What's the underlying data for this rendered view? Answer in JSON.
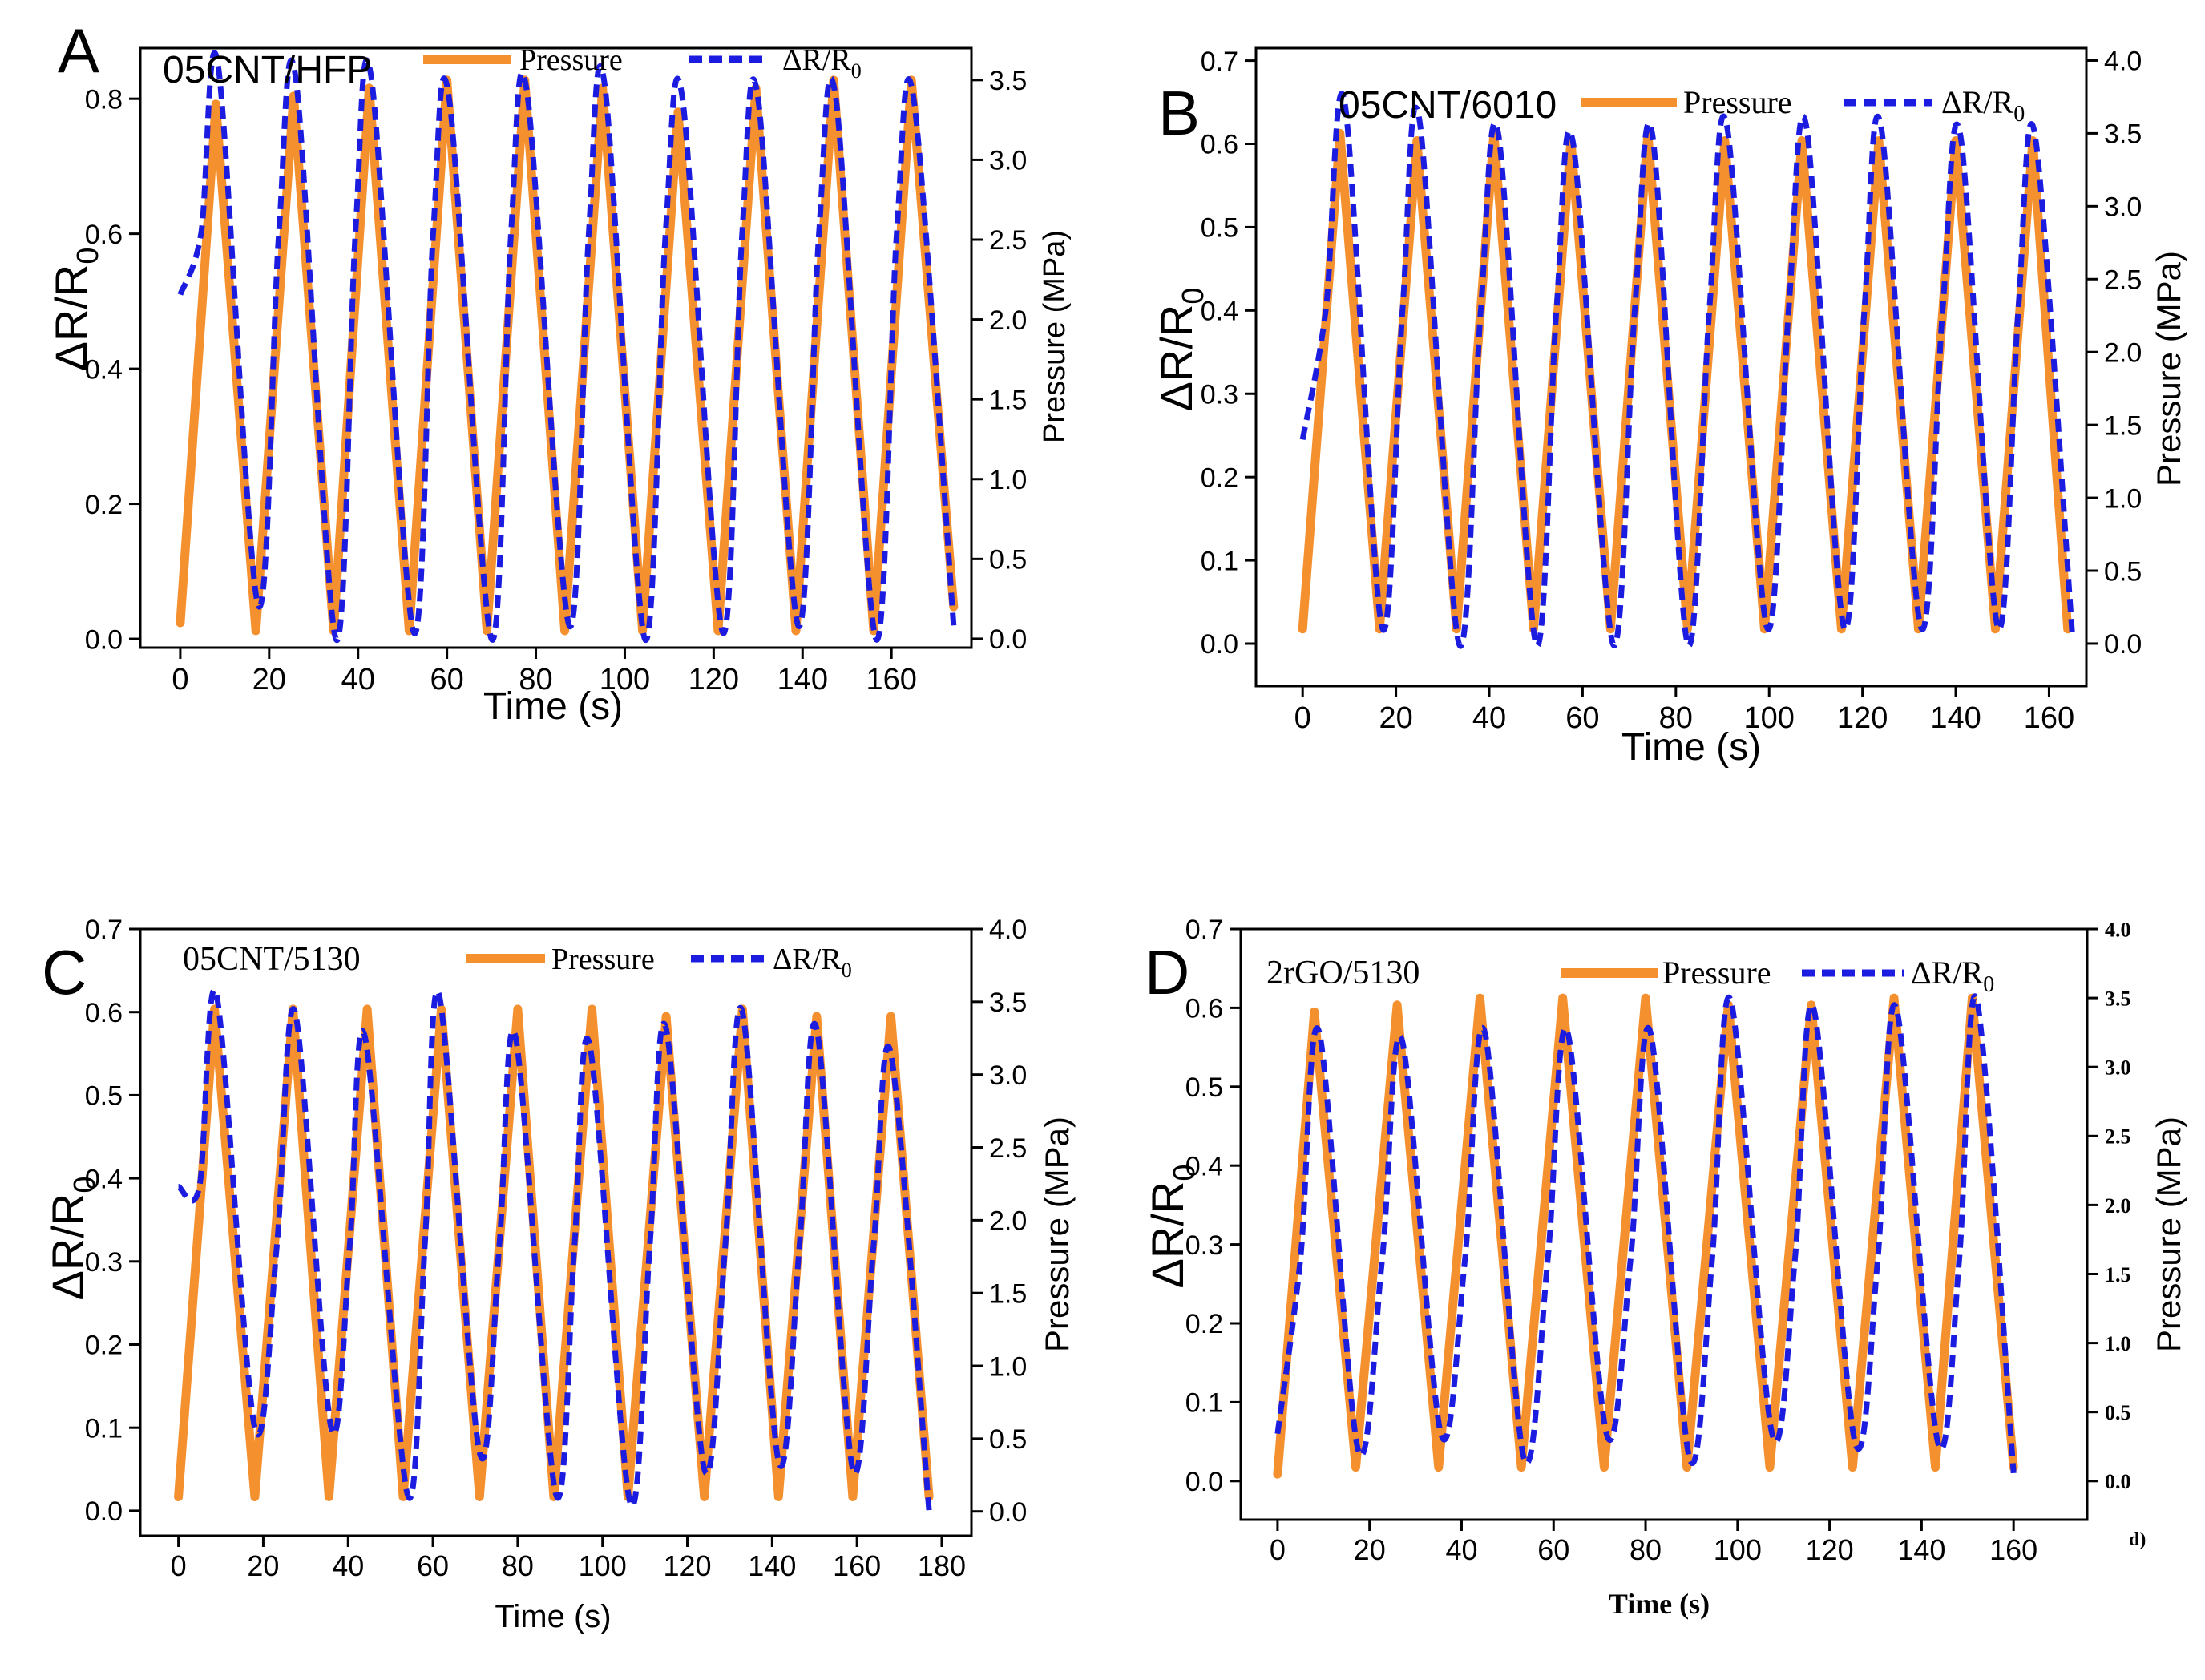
{
  "chart_data": [
    {
      "panel": "A",
      "type": "line",
      "sample_label": "05CNT/HFP",
      "xlabel": "Time (s)",
      "ylabel": "ΔR/R",
      "ylabel_sub": "0",
      "y2label": "Pressure (MPa)",
      "xlim": [
        -9,
        178
      ],
      "ylim": [
        -0.013,
        0.875
      ],
      "y2lim": [
        -0.0556,
        3.7
      ],
      "xticks": [
        0,
        20,
        40,
        60,
        80,
        100,
        120,
        140,
        160
      ],
      "xtick_labels": [
        "0",
        "20",
        "40",
        "60",
        "80",
        "100",
        "120",
        "140",
        "160"
      ],
      "yticks": [
        0,
        0.2,
        0.4,
        0.6,
        0.8
      ],
      "ytick_labels": [
        "0.0",
        "0.2",
        "0.4",
        "0.6",
        "0.8"
      ],
      "y2ticks": [
        0,
        0.5,
        1,
        1.5,
        2,
        2.5,
        3,
        3.5
      ],
      "y2tick_labels": [
        "0.0",
        "0.5",
        "1.0",
        "1.5",
        "2.0",
        "2.5",
        "3.0",
        "3.5"
      ],
      "legend": {
        "pressure": "Pressure",
        "resistance": "ΔR/R",
        "resistance_sub": "0",
        "placement": "top"
      },
      "series": [
        {
          "name": "Pressure",
          "axis": "right",
          "style": "solid",
          "color": "#F5902F",
          "start": [
            0,
            0.1
          ],
          "end": [
            174,
            0.2
          ],
          "peaks": [
            [
              8,
              3.35
            ],
            [
              25.5,
              3.4
            ],
            [
              42.5,
              3.45
            ],
            [
              60,
              3.5
            ],
            [
              77.5,
              3.5
            ],
            [
              95,
              3.45
            ],
            [
              112,
              3.3
            ],
            [
              129.5,
              3.45
            ],
            [
              147,
              3.5
            ],
            [
              164.5,
              3.5
            ]
          ],
          "troughs": [
            [
              17,
              0.05
            ],
            [
              34.5,
              0.05
            ],
            [
              51.5,
              0.05
            ],
            [
              69,
              0.05
            ],
            [
              86.5,
              0.05
            ],
            [
              104,
              0.05
            ],
            [
              121,
              0.05
            ],
            [
              138.5,
              0.05
            ],
            [
              156,
              0.05
            ]
          ]
        },
        {
          "name": "ΔR/R0",
          "axis": "left",
          "style": "dashed",
          "color": "#1C1CE0",
          "start": [
            0,
            0.51
          ],
          "end": [
            174,
            0.02
          ],
          "peaks": [
            [
              8.5,
              0.85
            ],
            [
              26,
              0.83
            ],
            [
              43,
              0.83
            ],
            [
              60.5,
              0.8
            ],
            [
              78,
              0.81
            ],
            [
              95.5,
              0.82
            ],
            [
              113,
              0.8
            ],
            [
              130,
              0.8
            ],
            [
              147.5,
              0.8
            ],
            [
              165,
              0.8
            ]
          ],
          "troughs": [
            [
              17.5,
              0.05
            ],
            [
              35,
              0.0
            ],
            [
              52.5,
              0.01
            ],
            [
              70,
              0.0
            ],
            [
              87.5,
              0.02
            ],
            [
              104.5,
              0.0
            ],
            [
              122,
              0.01
            ],
            [
              139,
              0.02
            ],
            [
              156.5,
              0.0
            ]
          ],
          "shoulder": 0.6
        }
      ]
    },
    {
      "panel": "B",
      "type": "line",
      "sample_label": "05CNT/6010",
      "xlabel": "Time (s)",
      "ylabel": "ΔR/R",
      "ylabel_sub": "0",
      "y2label": "Pressure (MPa)",
      "xlim": [
        -10,
        168
      ],
      "ylim": [
        -0.051,
        0.715
      ],
      "y2lim": [
        -0.2917,
        4.085
      ],
      "xticks": [
        0,
        20,
        40,
        60,
        80,
        100,
        120,
        140,
        160
      ],
      "xtick_labels": [
        "0",
        "20",
        "40",
        "60",
        "80",
        "100",
        "120",
        "140",
        "160"
      ],
      "yticks": [
        0,
        0.1,
        0.2,
        0.3,
        0.4,
        0.5,
        0.6,
        0.7
      ],
      "ytick_labels": [
        "0.0",
        "0.1",
        "0.2",
        "0.3",
        "0.4",
        "0.5",
        "0.6",
        "0.7"
      ],
      "y2ticks": [
        0,
        0.5,
        1,
        1.5,
        2,
        2.5,
        3,
        3.5,
        4
      ],
      "y2tick_labels": [
        "0.0",
        "0.5",
        "1.0",
        "1.5",
        "2.0",
        "2.5",
        "3.0",
        "3.5",
        "4.0"
      ],
      "legend": {
        "pressure": "Pressure",
        "resistance": "ΔR/R",
        "resistance_sub": "0",
        "placement": "top"
      },
      "series": [
        {
          "name": "Pressure",
          "axis": "right",
          "style": "solid",
          "color": "#F5902F",
          "start": [
            0,
            0.1
          ],
          "end": [
            164,
            0.1
          ],
          "peaks": [
            [
              8,
              3.5
            ],
            [
              24.5,
              3.45
            ],
            [
              41,
              3.5
            ],
            [
              57.5,
              3.45
            ],
            [
              74,
              3.5
            ],
            [
              90.5,
              3.45
            ],
            [
              107,
              3.45
            ],
            [
              123.5,
              3.45
            ],
            [
              140,
              3.45
            ],
            [
              156.5,
              3.45
            ]
          ],
          "troughs": [
            [
              16.5,
              0.1
            ],
            [
              33,
              0.1
            ],
            [
              49.5,
              0.1
            ],
            [
              66,
              0.1
            ],
            [
              82.5,
              0.1
            ],
            [
              99,
              0.1
            ],
            [
              115.5,
              0.1
            ],
            [
              132,
              0.1
            ],
            [
              148.5,
              0.1
            ]
          ]
        },
        {
          "name": "ΔR/R0",
          "axis": "left",
          "style": "dashed",
          "color": "#1C1CE0",
          "start": [
            0,
            0.245
          ],
          "end": [
            165,
            0.01
          ],
          "peaks": [
            [
              9,
              0.65
            ],
            [
              25,
              0.63
            ],
            [
              42,
              0.61
            ],
            [
              58,
              0.6
            ],
            [
              75,
              0.61
            ],
            [
              91,
              0.62
            ],
            [
              108,
              0.62
            ],
            [
              124,
              0.62
            ],
            [
              141,
              0.61
            ],
            [
              157,
              0.61
            ]
          ],
          "troughs": [
            [
              17,
              0.02
            ],
            [
              33.5,
              0.0
            ],
            [
              50,
              0.0
            ],
            [
              66.5,
              0.0
            ],
            [
              82.5,
              0.0
            ],
            [
              99.5,
              0.02
            ],
            [
              116,
              0.02
            ],
            [
              132.5,
              0.02
            ],
            [
              149,
              0.02
            ]
          ],
          "shoulder": 0.4
        }
      ]
    },
    {
      "panel": "C",
      "type": "line",
      "sample_label": "05CNT/5130",
      "xlabel": "Time (s)",
      "ylabel": "ΔR/R",
      "ylabel_sub": "0",
      "y2label": "Pressure (MPa)",
      "xlim": [
        -9,
        187
      ],
      "ylim": [
        -0.03,
        0.7
      ],
      "y2lim": [
        -0.1667,
        4.0
      ],
      "xticks": [
        0,
        20,
        40,
        60,
        80,
        100,
        120,
        140,
        160,
        180
      ],
      "xtick_labels": [
        "0",
        "20",
        "40",
        "60",
        "80",
        "100",
        "120",
        "140",
        "160",
        "180"
      ],
      "yticks": [
        0,
        0.1,
        0.2,
        0.3,
        0.4,
        0.5,
        0.6,
        0.7
      ],
      "ytick_labels": [
        "0.0",
        "0.1",
        "0.2",
        "0.3",
        "0.4",
        "0.5",
        "0.6",
        "0.7"
      ],
      "y2ticks": [
        0,
        0.5,
        1,
        1.5,
        2,
        2.5,
        3,
        3.5,
        4
      ],
      "y2tick_labels": [
        "0.0",
        "0.5",
        "1.0",
        "1.5",
        "2.0",
        "2.5",
        "3.0",
        "3.5",
        "4.0"
      ],
      "legend": {
        "pressure": "Pressure",
        "resistance": "ΔR/R",
        "resistance_sub": "0",
        "placement": "top"
      },
      "series": [
        {
          "name": "Pressure",
          "axis": "right",
          "style": "solid",
          "color": "#F5902F",
          "start": [
            0,
            0.1
          ],
          "end": [
            177,
            0.1
          ],
          "peaks": [
            [
              8.5,
              3.45
            ],
            [
              27,
              3.45
            ],
            [
              44.5,
              3.45
            ],
            [
              62,
              3.45
            ],
            [
              80,
              3.45
            ],
            [
              97.5,
              3.45
            ],
            [
              115,
              3.4
            ],
            [
              133,
              3.45
            ],
            [
              150.5,
              3.4
            ],
            [
              168,
              3.4
            ]
          ],
          "troughs": [
            [
              18,
              0.1
            ],
            [
              35.5,
              0.1
            ],
            [
              53,
              0.1
            ],
            [
              71,
              0.1
            ],
            [
              88.5,
              0.1
            ],
            [
              106,
              0.1
            ],
            [
              124,
              0.1
            ],
            [
              141.5,
              0.1
            ],
            [
              159,
              0.1
            ]
          ]
        },
        {
          "name": "ΔR/R0",
          "axis": "left",
          "style": "dashed",
          "color": "#1C1CE0",
          "start": [
            0,
            0.39
          ],
          "end": [
            177,
            0.0
          ],
          "peaks": [
            [
              9,
              0.62
            ],
            [
              27.5,
              0.6
            ],
            [
              44,
              0.57
            ],
            [
              61.5,
              0.62
            ],
            [
              79.5,
              0.57
            ],
            [
              97,
              0.56
            ],
            [
              115,
              0.58
            ],
            [
              133,
              0.6
            ],
            [
              150.5,
              0.58
            ],
            [
              168,
              0.55
            ]
          ],
          "troughs": [
            [
              18,
              0.1
            ],
            [
              36,
              0.1
            ],
            [
              54,
              0.02
            ],
            [
              71,
              0.07
            ],
            [
              89,
              0.02
            ],
            [
              106.5,
              0.01
            ],
            [
              124,
              0.05
            ],
            [
              141.5,
              0.06
            ],
            [
              159,
              0.05
            ]
          ],
          "shoulder": 0.32
        }
      ]
    },
    {
      "panel": "D",
      "type": "line",
      "sample_label": "2rGO/5130",
      "xlabel": "Time (s)",
      "ylabel": "ΔR/R",
      "ylabel_sub": "0",
      "y2label": "Pressure (MPa)",
      "xlim": [
        -8,
        176
      ],
      "ylim": [
        -0.049,
        0.7
      ],
      "y2lim": [
        -0.28,
        4.0
      ],
      "xticks": [
        0,
        20,
        40,
        60,
        80,
        100,
        120,
        140,
        160
      ],
      "xtick_labels": [
        "0",
        "20",
        "40",
        "60",
        "80",
        "100",
        "120",
        "140",
        "160"
      ],
      "yticks": [
        0,
        0.1,
        0.2,
        0.3,
        0.4,
        0.5,
        0.6,
        0.7
      ],
      "ytick_labels": [
        "0.0",
        "0.1",
        "0.2",
        "0.3",
        "0.4",
        "0.5",
        "0.6",
        "0.7"
      ],
      "y2ticks": [
        0,
        0.5,
        1,
        1.5,
        2,
        2.5,
        3,
        3.5,
        4
      ],
      "y2tick_labels": [
        "0.0",
        "0.5",
        "1.0",
        "1.5",
        "2.0",
        "2.5",
        "3.0",
        "3.5",
        "4.0"
      ],
      "corner_note": "d)",
      "legend": {
        "pressure": "Pressure",
        "resistance": "ΔR/R",
        "resistance_sub": "0",
        "placement": "top"
      },
      "series": [
        {
          "name": "Pressure",
          "axis": "right",
          "style": "solid",
          "color": "#F5902F",
          "start": [
            0,
            0.05
          ],
          "end": [
            160,
            0.1
          ],
          "peaks": [
            [
              8,
              3.4
            ],
            [
              26,
              3.45
            ],
            [
              44,
              3.5
            ],
            [
              62,
              3.5
            ],
            [
              80,
              3.5
            ],
            [
              98,
              3.45
            ],
            [
              116,
              3.45
            ],
            [
              134,
              3.5
            ],
            [
              151,
              3.5
            ]
          ],
          "troughs": [
            [
              17,
              0.1
            ],
            [
              35,
              0.1
            ],
            [
              53,
              0.1
            ],
            [
              71,
              0.1
            ],
            [
              89,
              0.1
            ],
            [
              107,
              0.1
            ],
            [
              125,
              0.1
            ],
            [
              143,
              0.1
            ]
          ]
        },
        {
          "name": "ΔR/R0",
          "axis": "left",
          "style": "dashed",
          "color": "#1C1CE0",
          "start": [
            0,
            0.06
          ],
          "end": [
            160,
            0.01
          ],
          "peaks": [
            [
              9,
              0.57
            ],
            [
              27,
              0.56
            ],
            [
              45,
              0.57
            ],
            [
              63,
              0.57
            ],
            [
              81,
              0.57
            ],
            [
              98.5,
              0.61
            ],
            [
              116.5,
              0.6
            ],
            [
              134.5,
              0.6
            ],
            [
              152,
              0.61
            ]
          ],
          "troughs": [
            [
              17.5,
              0.04
            ],
            [
              35.5,
              0.06
            ],
            [
              53.5,
              0.03
            ],
            [
              71.5,
              0.06
            ],
            [
              89.5,
              0.03
            ],
            [
              107.5,
              0.06
            ],
            [
              125.5,
              0.05
            ],
            [
              143.5,
              0.05
            ]
          ],
          "shoulder": 0.28
        }
      ]
    }
  ]
}
